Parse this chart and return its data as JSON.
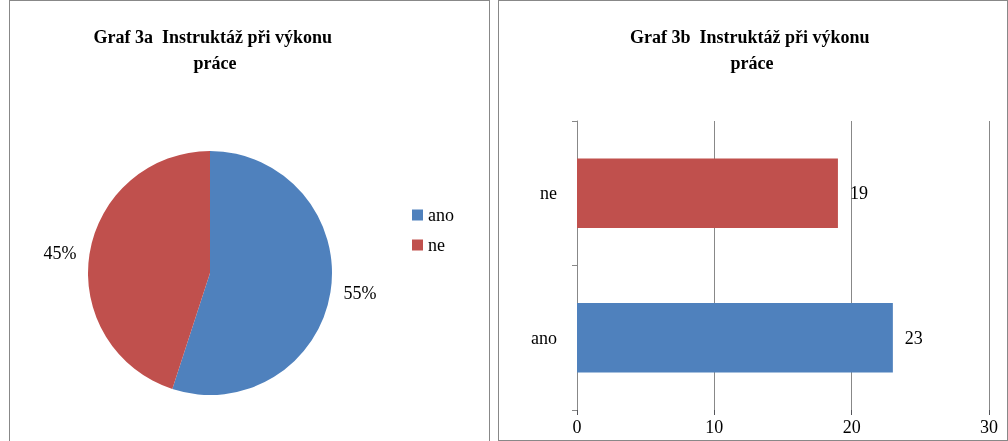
{
  "chart_data": [
    {
      "type": "pie",
      "title": "Graf 3a  Instruktáž při výkonu práce",
      "categories": [
        "ano",
        "ne"
      ],
      "values": [
        55,
        45
      ],
      "colors": [
        "#4f81bd",
        "#c0504d"
      ],
      "value_labels": [
        "55%",
        "45%"
      ],
      "legend": "right"
    },
    {
      "type": "bar",
      "title": "Graf 3b  Instruktáž při výkonu práce",
      "orientation": "horizontal",
      "categories": [
        "ne",
        "ano"
      ],
      "values": [
        19,
        23
      ],
      "colors": [
        "#c0504d",
        "#4f81bd"
      ],
      "xlim": [
        0,
        30
      ],
      "xticks": [
        0,
        10,
        20,
        30
      ],
      "grid": "x",
      "data_labels": true
    }
  ]
}
